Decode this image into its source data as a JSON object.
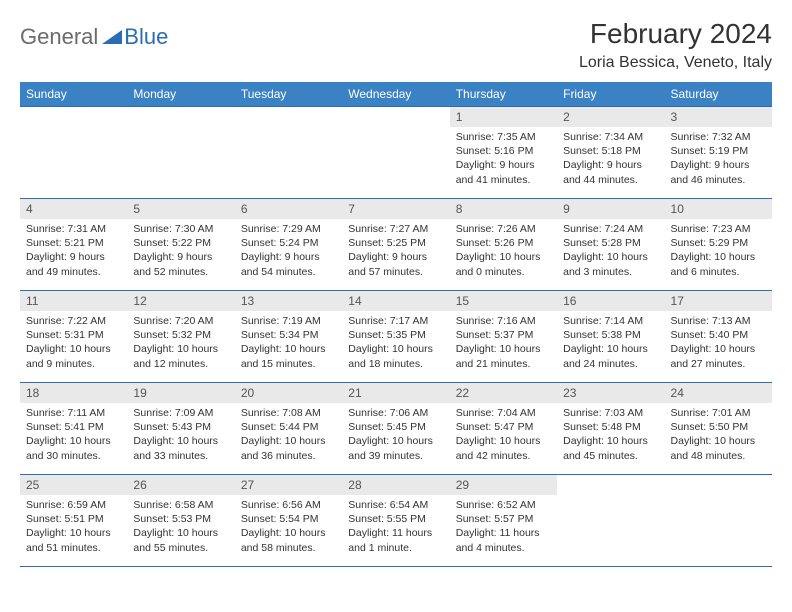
{
  "logo": {
    "part1": "General",
    "part2": "Blue"
  },
  "title": "February 2024",
  "location": "Loria Bessica, Veneto, Italy",
  "colors": {
    "header_bg": "#3b82c4",
    "header_text": "#ffffff",
    "daynum_bg": "#e9e9e9",
    "border": "#2a6db5",
    "logo_gray": "#6b6b6b",
    "logo_blue": "#2a6db5",
    "text": "#333333"
  },
  "weekdays": [
    "Sunday",
    "Monday",
    "Tuesday",
    "Wednesday",
    "Thursday",
    "Friday",
    "Saturday"
  ],
  "days": {
    "1": {
      "sunrise": "7:35 AM",
      "sunset": "5:16 PM",
      "daylight": "9 hours and 41 minutes."
    },
    "2": {
      "sunrise": "7:34 AM",
      "sunset": "5:18 PM",
      "daylight": "9 hours and 44 minutes."
    },
    "3": {
      "sunrise": "7:32 AM",
      "sunset": "5:19 PM",
      "daylight": "9 hours and 46 minutes."
    },
    "4": {
      "sunrise": "7:31 AM",
      "sunset": "5:21 PM",
      "daylight": "9 hours and 49 minutes."
    },
    "5": {
      "sunrise": "7:30 AM",
      "sunset": "5:22 PM",
      "daylight": "9 hours and 52 minutes."
    },
    "6": {
      "sunrise": "7:29 AM",
      "sunset": "5:24 PM",
      "daylight": "9 hours and 54 minutes."
    },
    "7": {
      "sunrise": "7:27 AM",
      "sunset": "5:25 PM",
      "daylight": "9 hours and 57 minutes."
    },
    "8": {
      "sunrise": "7:26 AM",
      "sunset": "5:26 PM",
      "daylight": "10 hours and 0 minutes."
    },
    "9": {
      "sunrise": "7:24 AM",
      "sunset": "5:28 PM",
      "daylight": "10 hours and 3 minutes."
    },
    "10": {
      "sunrise": "7:23 AM",
      "sunset": "5:29 PM",
      "daylight": "10 hours and 6 minutes."
    },
    "11": {
      "sunrise": "7:22 AM",
      "sunset": "5:31 PM",
      "daylight": "10 hours and 9 minutes."
    },
    "12": {
      "sunrise": "7:20 AM",
      "sunset": "5:32 PM",
      "daylight": "10 hours and 12 minutes."
    },
    "13": {
      "sunrise": "7:19 AM",
      "sunset": "5:34 PM",
      "daylight": "10 hours and 15 minutes."
    },
    "14": {
      "sunrise": "7:17 AM",
      "sunset": "5:35 PM",
      "daylight": "10 hours and 18 minutes."
    },
    "15": {
      "sunrise": "7:16 AM",
      "sunset": "5:37 PM",
      "daylight": "10 hours and 21 minutes."
    },
    "16": {
      "sunrise": "7:14 AM",
      "sunset": "5:38 PM",
      "daylight": "10 hours and 24 minutes."
    },
    "17": {
      "sunrise": "7:13 AM",
      "sunset": "5:40 PM",
      "daylight": "10 hours and 27 minutes."
    },
    "18": {
      "sunrise": "7:11 AM",
      "sunset": "5:41 PM",
      "daylight": "10 hours and 30 minutes."
    },
    "19": {
      "sunrise": "7:09 AM",
      "sunset": "5:43 PM",
      "daylight": "10 hours and 33 minutes."
    },
    "20": {
      "sunrise": "7:08 AM",
      "sunset": "5:44 PM",
      "daylight": "10 hours and 36 minutes."
    },
    "21": {
      "sunrise": "7:06 AM",
      "sunset": "5:45 PM",
      "daylight": "10 hours and 39 minutes."
    },
    "22": {
      "sunrise": "7:04 AM",
      "sunset": "5:47 PM",
      "daylight": "10 hours and 42 minutes."
    },
    "23": {
      "sunrise": "7:03 AM",
      "sunset": "5:48 PM",
      "daylight": "10 hours and 45 minutes."
    },
    "24": {
      "sunrise": "7:01 AM",
      "sunset": "5:50 PM",
      "daylight": "10 hours and 48 minutes."
    },
    "25": {
      "sunrise": "6:59 AM",
      "sunset": "5:51 PM",
      "daylight": "10 hours and 51 minutes."
    },
    "26": {
      "sunrise": "6:58 AM",
      "sunset": "5:53 PM",
      "daylight": "10 hours and 55 minutes."
    },
    "27": {
      "sunrise": "6:56 AM",
      "sunset": "5:54 PM",
      "daylight": "10 hours and 58 minutes."
    },
    "28": {
      "sunrise": "6:54 AM",
      "sunset": "5:55 PM",
      "daylight": "11 hours and 1 minute."
    },
    "29": {
      "sunrise": "6:52 AM",
      "sunset": "5:57 PM",
      "daylight": "11 hours and 4 minutes."
    }
  },
  "weeks": [
    [
      null,
      null,
      null,
      null,
      1,
      2,
      3
    ],
    [
      4,
      5,
      6,
      7,
      8,
      9,
      10
    ],
    [
      11,
      12,
      13,
      14,
      15,
      16,
      17
    ],
    [
      18,
      19,
      20,
      21,
      22,
      23,
      24
    ],
    [
      25,
      26,
      27,
      28,
      29,
      null,
      null
    ]
  ],
  "labels": {
    "sunrise": "Sunrise: ",
    "sunset": "Sunset: ",
    "daylight": "Daylight: "
  }
}
